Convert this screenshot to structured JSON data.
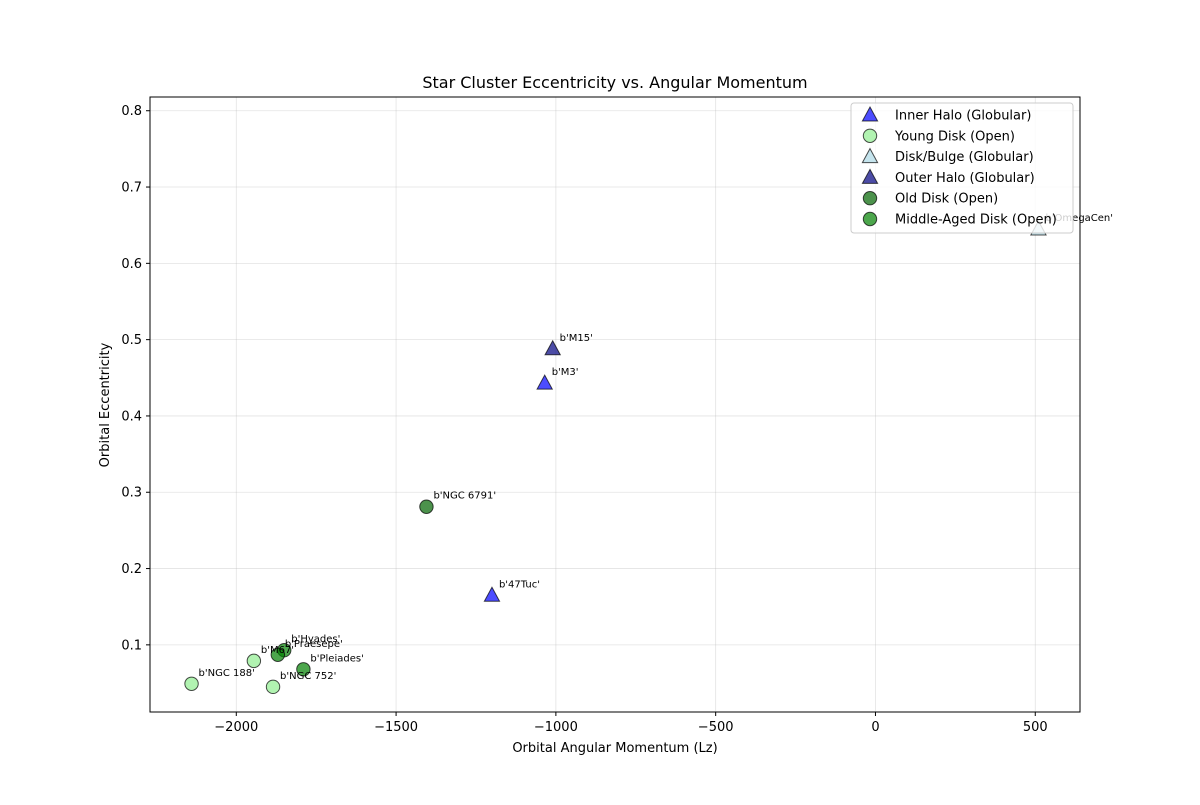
{
  "chart_data": {
    "type": "scatter",
    "title": "Star Cluster Eccentricity vs. Angular Momentum",
    "xlabel": "Orbital Angular Momentum (Lz)",
    "ylabel": "Orbital Eccentricity",
    "xlim": [
      -2270,
      640
    ],
    "ylim": [
      0.012,
      0.818
    ],
    "xticks": [
      -2000,
      -1500,
      -1000,
      -500,
      0,
      500
    ],
    "xtick_labels": [
      "−2000",
      "−1500",
      "−1000",
      "−500",
      "0",
      "500"
    ],
    "yticks": [
      0.1,
      0.2,
      0.3,
      0.4,
      0.5,
      0.6,
      0.7,
      0.8
    ],
    "ytick_labels": [
      "0.1",
      "0.2",
      "0.3",
      "0.4",
      "0.5",
      "0.6",
      "0.7",
      "0.8"
    ],
    "grid": true,
    "legend_position": "top-right",
    "series": [
      {
        "name": "Inner Halo (Globular)",
        "marker": "triangle",
        "color": "#0000ff",
        "points": [
          {
            "label": "b'M3'",
            "x": -1035,
            "y": 0.443
          },
          {
            "label": "b'47Tuc'",
            "x": -1200,
            "y": 0.165
          }
        ]
      },
      {
        "name": "Young Disk (Open)",
        "marker": "circle",
        "color": "#90ee90",
        "points": [
          {
            "label": "b'NGC 188'",
            "x": -2140,
            "y": 0.049
          },
          {
            "label": "b'M67'",
            "x": -1945,
            "y": 0.079
          },
          {
            "label": "b'NGC 752'",
            "x": -1885,
            "y": 0.045
          }
        ]
      },
      {
        "name": "Disk/Bulge (Globular)",
        "marker": "triangle",
        "color": "#add8e6",
        "points": [
          {
            "label": "b'OmegaCen'",
            "x": 510,
            "y": 0.645
          }
        ]
      },
      {
        "name": "Outer Halo (Globular)",
        "marker": "triangle",
        "color": "#000080",
        "points": [
          {
            "label": "b'M15'",
            "x": -1010,
            "y": 0.488
          }
        ]
      },
      {
        "name": "Old Disk (Open)",
        "marker": "circle",
        "color": "#006400",
        "points": [
          {
            "label": "b'NGC 6791'",
            "x": -1405,
            "y": 0.281
          }
        ]
      },
      {
        "name": "Middle-Aged Disk (Open)",
        "marker": "circle",
        "color": "#008000",
        "points": [
          {
            "label": "b'Hyades'",
            "x": -1850,
            "y": 0.093
          },
          {
            "label": "b'Praesepe'",
            "x": -1870,
            "y": 0.087
          },
          {
            "label": "b'Pleiades'",
            "x": -1790,
            "y": 0.068
          }
        ]
      }
    ]
  }
}
